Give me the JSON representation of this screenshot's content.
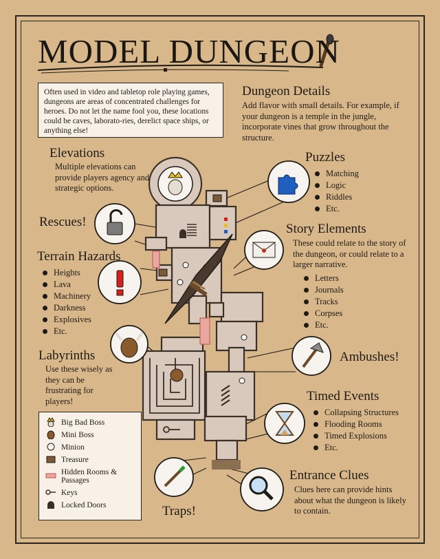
{
  "title": "MODEL DUNGEON",
  "intro": "Often used in video and tabletop role playing games, dungeons are areas of concentrated challenges for heroes. Do not let the name fool you, these locations could be caves, laborato-ries, derelict space ships, or anything else!",
  "dungeon_details": {
    "heading": "Dungeon Details",
    "text": "Add flavor with small details. For example, if your dungeon is a temple in the jungle, incorporate vines that grow throughout the structure."
  },
  "elevations": {
    "heading": "Elevations",
    "text": "Multiple elevations can provide players agency and strategic options."
  },
  "puzzles": {
    "heading": "Puzzles",
    "items": [
      "Matching",
      "Logic",
      "Riddles",
      "Etc."
    ]
  },
  "rescues": {
    "heading": "Rescues!"
  },
  "story_elements": {
    "heading": "Story Elements",
    "text": "These could relate to the story of the dungeon, or could relate to a larger narrative.",
    "items": [
      "Letters",
      "Journals",
      "Tracks",
      "Corpses",
      "Etc."
    ]
  },
  "terrain_hazards": {
    "heading": "Terrain Hazards",
    "items": [
      "Heights",
      "Lava",
      "Machinery",
      "Darkness",
      "Explosives",
      "Etc."
    ]
  },
  "labyrinths": {
    "heading": "Labyrinths",
    "text": "Use these wisely as they can be frustrating for players!"
  },
  "ambushes": {
    "heading": "Ambushes!"
  },
  "timed_events": {
    "heading": "Timed Events",
    "items": [
      "Collapsing Structures",
      "Flooding Rooms",
      "Timed Explosions",
      "Etc."
    ]
  },
  "entrance_clues": {
    "heading": "Entrance Clues",
    "text": "Clues here can provide hints about what the dungeon is likely to contain."
  },
  "traps": {
    "heading": "Traps!"
  },
  "legend": [
    {
      "icon": "big-bad-boss-icon",
      "label": "Big Bad Boss"
    },
    {
      "icon": "mini-boss-icon",
      "label": "Mini Boss"
    },
    {
      "icon": "minion-icon",
      "label": "Minion"
    },
    {
      "icon": "treasure-icon",
      "label": "Treasure"
    },
    {
      "icon": "hidden-room-icon",
      "label": "Hidden Rooms &\nPassages"
    },
    {
      "icon": "key-icon",
      "label": "Keys"
    },
    {
      "icon": "locked-door-icon",
      "label": "Locked Doors"
    }
  ],
  "colors": {
    "parchment": "#d8b78b",
    "room_fill": "#d8c9bc",
    "room_stroke": "#3a3028",
    "hidden_passage": "#e8a8a0",
    "puzzle_blue": "#1f5fbf",
    "hazard_red": "#d8201a",
    "circle_fill": "#f7f3ee"
  }
}
